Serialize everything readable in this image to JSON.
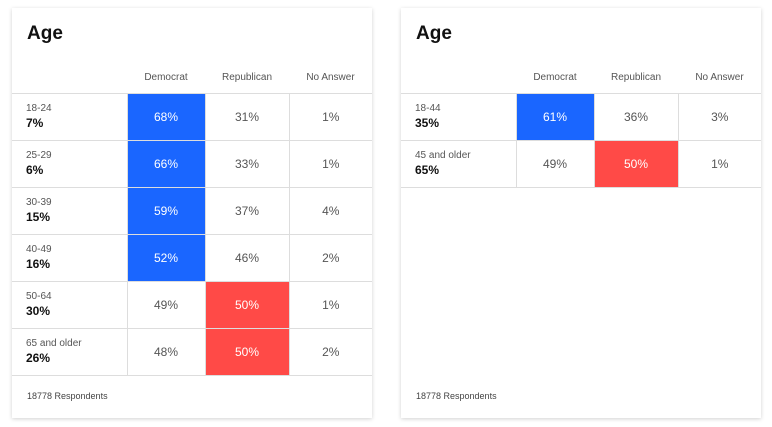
{
  "colors": {
    "democrat": "#1a66ff",
    "republican": "#ff4a47"
  },
  "chart_data": [
    {
      "type": "table",
      "title": "Age",
      "columns": [
        "Democrat",
        "Republican",
        "No Answer"
      ],
      "rows": [
        {
          "label": "18-24",
          "share": "7%",
          "values": [
            "68%",
            "31%",
            "1%"
          ],
          "highlight": "democrat"
        },
        {
          "label": "25-29",
          "share": "6%",
          "values": [
            "66%",
            "33%",
            "1%"
          ],
          "highlight": "democrat"
        },
        {
          "label": "30-39",
          "share": "15%",
          "values": [
            "59%",
            "37%",
            "4%"
          ],
          "highlight": "democrat"
        },
        {
          "label": "40-49",
          "share": "16%",
          "values": [
            "52%",
            "46%",
            "2%"
          ],
          "highlight": "democrat"
        },
        {
          "label": "50-64",
          "share": "30%",
          "values": [
            "49%",
            "50%",
            "1%"
          ],
          "highlight": "republican"
        },
        {
          "label": "65 and older",
          "share": "26%",
          "values": [
            "48%",
            "50%",
            "2%"
          ],
          "highlight": "republican"
        }
      ],
      "footer": "18778 Respondents"
    },
    {
      "type": "table",
      "title": "Age",
      "columns": [
        "Democrat",
        "Republican",
        "No Answer"
      ],
      "rows": [
        {
          "label": "18-44",
          "share": "35%",
          "values": [
            "61%",
            "36%",
            "3%"
          ],
          "highlight": "democrat"
        },
        {
          "label": "45 and older",
          "share": "65%",
          "values": [
            "49%",
            "50%",
            "1%"
          ],
          "highlight": "republican"
        }
      ],
      "footer": "18778 Respondents"
    }
  ]
}
